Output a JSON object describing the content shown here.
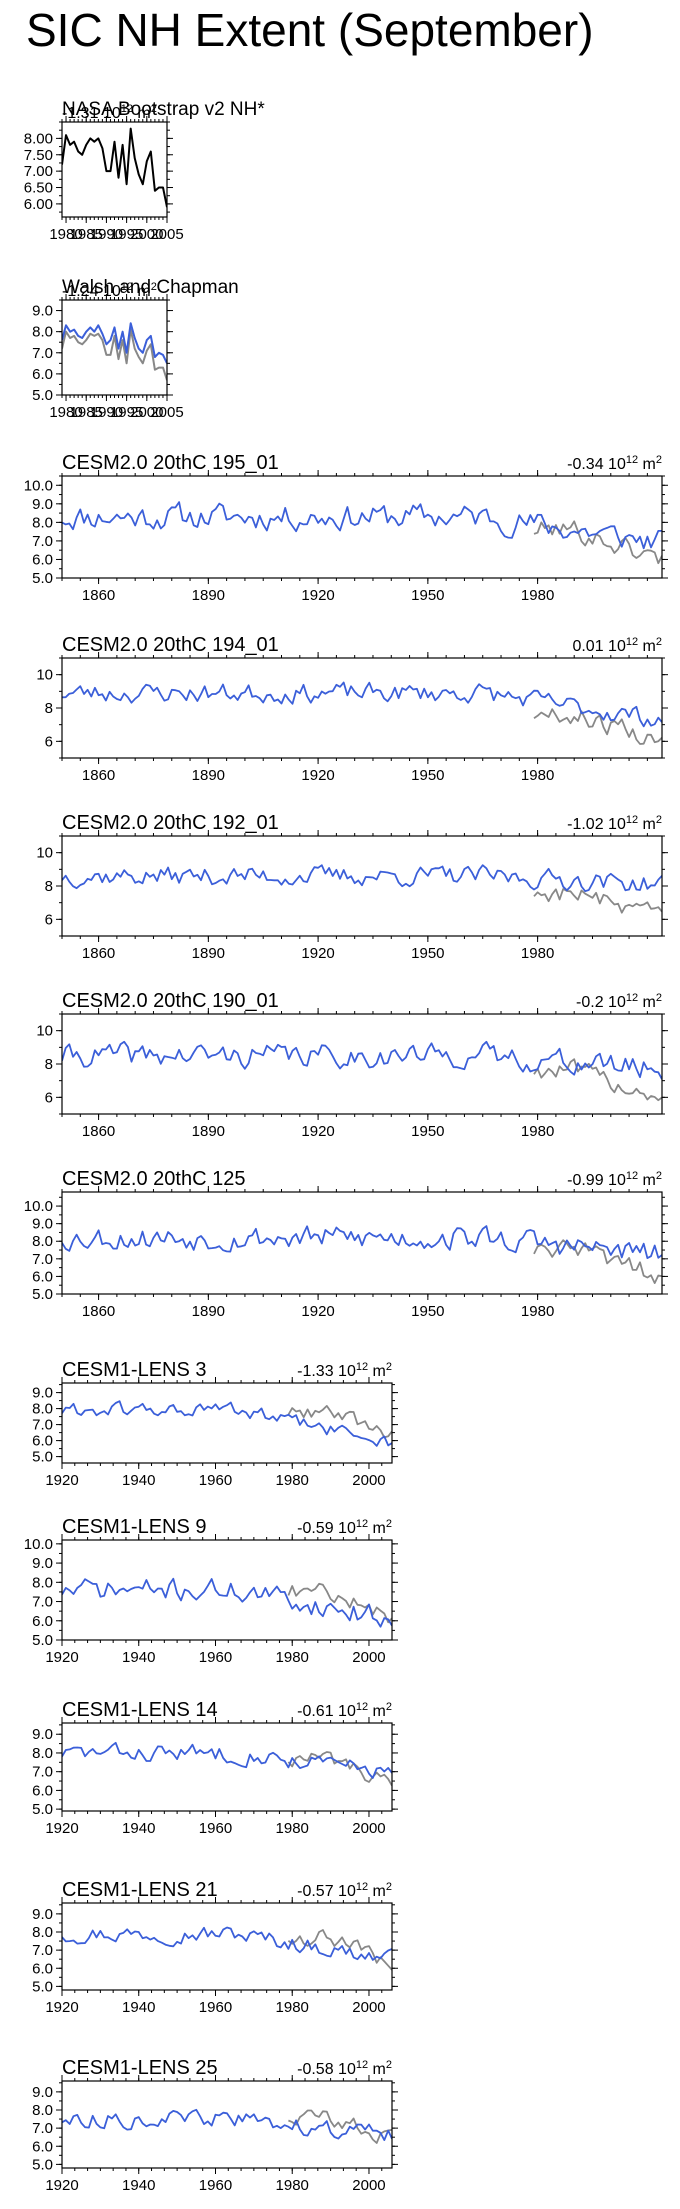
{
  "page_title": "SIC NH Extent (September)",
  "colors": {
    "model": "#3b5fd9",
    "obs": "#888888",
    "obs_primary": "#000000"
  },
  "chart_data": [
    {
      "type": "line",
      "id": "nasa",
      "title": "NASA Bootstrap v2 NH*",
      "subtitle": "-1.31 10",
      "subtitle_exp": "12",
      "subtitle_unit": "m",
      "subtitle_unit_exp": "2",
      "xlim": [
        1979,
        2005
      ],
      "ylim": [
        5.6,
        8.5
      ],
      "xticks": [
        1980,
        1985,
        1990,
        1995,
        2000,
        2005
      ],
      "xticklabels": [
        "1980",
        "1985",
        "1990",
        "1995",
        "2000",
        "2005"
      ],
      "yticks": [
        6.0,
        6.5,
        7.0,
        7.5,
        8.0
      ],
      "yticklabels": [
        "6.00",
        "6.50",
        "7.00",
        "7.50",
        "8.00"
      ],
      "series": [
        {
          "name": "NASA Bootstrap",
          "color": "#000000",
          "x0": 1979,
          "values": [
            7.2,
            8.1,
            7.8,
            7.9,
            7.6,
            7.5,
            7.8,
            8.0,
            7.9,
            8.0,
            7.7,
            7.0,
            7.0,
            7.9,
            6.8,
            7.8,
            6.6,
            8.3,
            7.4,
            6.9,
            6.6,
            7.3,
            7.6,
            6.4,
            6.5,
            6.5,
            5.9
          ]
        }
      ]
    },
    {
      "type": "line",
      "id": "walsh",
      "title": "Walsh and Chapman",
      "subtitle": "-1.24 10",
      "subtitle_exp": "12",
      "subtitle_unit": "m",
      "subtitle_unit_exp": "2",
      "xlim": [
        1979,
        2005
      ],
      "ylim": [
        5.0,
        9.5
      ],
      "xticks": [
        1980,
        1985,
        1990,
        1995,
        2000,
        2005
      ],
      "xticklabels": [
        "1980",
        "1985",
        "1990",
        "1995",
        "2000",
        "2005"
      ],
      "yticks": [
        5.0,
        6.0,
        7.0,
        8.0,
        9.0
      ],
      "yticklabels": [
        "5.0",
        "6.0",
        "7.0",
        "8.0",
        "9.0"
      ],
      "series": [
        {
          "name": "Walsh and Chapman",
          "color": "#3b5fd9",
          "x0": 1979,
          "values": [
            7.6,
            8.3,
            8.0,
            8.1,
            7.8,
            7.7,
            8.0,
            8.2,
            8.0,
            8.3,
            7.9,
            7.4,
            7.6,
            8.2,
            7.2,
            8.0,
            7.0,
            8.4,
            7.7,
            7.2,
            7.0,
            7.6,
            7.8,
            6.8,
            7.0,
            6.9,
            6.5
          ]
        },
        {
          "name": "NASA Bootstrap",
          "color": "#888888",
          "x0": 1979,
          "values": [
            7.2,
            8.0,
            7.7,
            7.8,
            7.5,
            7.4,
            7.6,
            7.9,
            7.8,
            7.9,
            7.6,
            6.9,
            6.9,
            7.8,
            6.7,
            7.6,
            6.5,
            8.1,
            7.2,
            6.8,
            6.5,
            7.1,
            7.4,
            6.2,
            6.3,
            6.3,
            5.7
          ]
        }
      ]
    },
    {
      "type": "line",
      "id": "cesm2_195_01",
      "title": "CESM2.0 20thC 195_01",
      "subtitle": "-0.34 10",
      "subtitle_exp": "12",
      "subtitle_unit": "m",
      "subtitle_unit_exp": "2",
      "xlim": [
        1850,
        2014
      ],
      "ylim": [
        5.0,
        10.5
      ],
      "xticks": [
        1860,
        1890,
        1920,
        1950,
        1980
      ],
      "xticklabels": [
        "1860",
        "1890",
        "1920",
        "1950",
        "1980"
      ],
      "yticks": [
        5.0,
        6.0,
        7.0,
        8.0,
        9.0,
        10.0
      ],
      "yticklabels": [
        "5.0",
        "6.0",
        "7.0",
        "8.0",
        "9.0",
        "10.0"
      ],
      "model_gen": {
        "seed": 11,
        "mean": 8.3,
        "amp": 0.6,
        "trend_end": -1.4,
        "color": "#3b5fd9"
      },
      "obs_gen": {
        "seed": 101,
        "start": 1979,
        "mean": 7.6,
        "amp": 0.5,
        "trend_end": -1.6,
        "color": "#888888"
      }
    },
    {
      "type": "line",
      "id": "cesm2_194_01",
      "title": "CESM2.0 20thC 194_01",
      "subtitle": "0.01 10",
      "subtitle_exp": "12",
      "subtitle_unit": "m",
      "subtitle_unit_exp": "2",
      "xlim": [
        1850,
        2014
      ],
      "ylim": [
        5.0,
        11.0
      ],
      "xticks": [
        1860,
        1890,
        1920,
        1950,
        1980
      ],
      "xticklabels": [
        "1860",
        "1890",
        "1920",
        "1950",
        "1980"
      ],
      "yticks": [
        6,
        8,
        10
      ],
      "yticklabels": [
        "6",
        "8",
        "10"
      ],
      "model_gen": {
        "seed": 23,
        "mean": 8.9,
        "amp": 0.5,
        "trend_end": -1.6,
        "color": "#3b5fd9"
      },
      "obs_gen": {
        "seed": 102,
        "start": 1979,
        "mean": 7.6,
        "amp": 0.5,
        "trend_end": -1.6,
        "color": "#888888"
      }
    },
    {
      "type": "line",
      "id": "cesm2_192_01",
      "title": "CESM2.0 20thC 192_01",
      "subtitle": "-1.02 10",
      "subtitle_exp": "12",
      "subtitle_unit": "m",
      "subtitle_unit_exp": "2",
      "xlim": [
        1850,
        2014
      ],
      "ylim": [
        5.0,
        11.0
      ],
      "xticks": [
        1860,
        1890,
        1920,
        1950,
        1980
      ],
      "xticklabels": [
        "1860",
        "1890",
        "1920",
        "1950",
        "1980"
      ],
      "yticks": [
        6,
        8,
        10
      ],
      "yticklabels": [
        "6",
        "8",
        "10"
      ],
      "model_gen": {
        "seed": 37,
        "mean": 8.6,
        "amp": 0.5,
        "trend_end": -0.5,
        "color": "#3b5fd9"
      },
      "obs_gen": {
        "seed": 103,
        "start": 1979,
        "mean": 7.6,
        "amp": 0.5,
        "trend_end": -1.6,
        "color": "#888888"
      }
    },
    {
      "type": "line",
      "id": "cesm2_190_01",
      "title": "CESM2.0 20thC 190_01",
      "subtitle": "-0.2 10",
      "subtitle_exp": "12",
      "subtitle_unit": "m",
      "subtitle_unit_exp": "2",
      "xlim": [
        1850,
        2014
      ],
      "ylim": [
        5.0,
        11.0
      ],
      "xticks": [
        1860,
        1890,
        1920,
        1950,
        1980
      ],
      "xticklabels": [
        "1860",
        "1890",
        "1920",
        "1950",
        "1980"
      ],
      "yticks": [
        6,
        8,
        10
      ],
      "yticklabels": [
        "6",
        "8",
        "10"
      ],
      "model_gen": {
        "seed": 41,
        "mean": 8.5,
        "amp": 0.6,
        "trend_end": -0.8,
        "color": "#3b5fd9"
      },
      "obs_gen": {
        "seed": 104,
        "start": 1979,
        "mean": 7.6,
        "amp": 0.5,
        "trend_end": -1.6,
        "color": "#888888"
      }
    },
    {
      "type": "line",
      "id": "cesm2_125",
      "title": "CESM2.0 20thC 125",
      "subtitle": "-0.99 10",
      "subtitle_exp": "12",
      "subtitle_unit": "m",
      "subtitle_unit_exp": "2",
      "xlim": [
        1850,
        2014
      ],
      "ylim": [
        5.0,
        10.8
      ],
      "xticks": [
        1860,
        1890,
        1920,
        1950,
        1980
      ],
      "xticklabels": [
        "1860",
        "1890",
        "1920",
        "1950",
        "1980"
      ],
      "yticks": [
        5.0,
        6.0,
        7.0,
        8.0,
        9.0,
        10.0
      ],
      "yticklabels": [
        "5.0",
        "6.0",
        "7.0",
        "8.0",
        "9.0",
        "10.0"
      ],
      "model_gen": {
        "seed": 53,
        "mean": 8.2,
        "amp": 0.6,
        "trend_end": -1.0,
        "color": "#3b5fd9"
      },
      "obs_gen": {
        "seed": 105,
        "start": 1979,
        "mean": 7.5,
        "amp": 0.5,
        "trend_end": -1.5,
        "color": "#888888"
      }
    },
    {
      "type": "line",
      "id": "lens_3",
      "title": "CESM1-LENS 3",
      "subtitle": "-1.33 10",
      "subtitle_exp": "12",
      "subtitle_unit": "m",
      "subtitle_unit_exp": "2",
      "xlim": [
        1920,
        2006
      ],
      "ylim": [
        4.6,
        9.6
      ],
      "xticks": [
        1920,
        1940,
        1960,
        1980,
        2000
      ],
      "xticklabels": [
        "1920",
        "1940",
        "1960",
        "1980",
        "2000"
      ],
      "yticks": [
        5.0,
        6.0,
        7.0,
        8.0,
        9.0
      ],
      "yticklabels": [
        "5.0",
        "6.0",
        "7.0",
        "8.0",
        "9.0"
      ],
      "model_gen": {
        "seed": 61,
        "mean": 7.9,
        "amp": 0.4,
        "trend_end": -2.0,
        "color": "#3b5fd9"
      },
      "obs_gen": {
        "seed": 106,
        "start": 1979,
        "mean": 7.8,
        "amp": 0.4,
        "trend_end": -1.5,
        "color": "#888888"
      }
    },
    {
      "type": "line",
      "id": "lens_9",
      "title": "CESM1-LENS 9",
      "subtitle": "-0.59 10",
      "subtitle_exp": "12",
      "subtitle_unit": "m",
      "subtitle_unit_exp": "2",
      "xlim": [
        1920,
        2006
      ],
      "ylim": [
        5.0,
        10.2
      ],
      "xticks": [
        1920,
        1940,
        1960,
        1980,
        2000
      ],
      "xticklabels": [
        "1920",
        "1940",
        "1960",
        "1980",
        "2000"
      ],
      "yticks": [
        5.0,
        6.0,
        7.0,
        8.0,
        9.0,
        10.0
      ],
      "yticklabels": [
        "5.0",
        "6.0",
        "7.0",
        "8.0",
        "9.0",
        "10.0"
      ],
      "model_gen": {
        "seed": 71,
        "mean": 7.6,
        "amp": 0.5,
        "trend_end": -1.5,
        "color": "#3b5fd9"
      },
      "obs_gen": {
        "seed": 107,
        "start": 1979,
        "mean": 7.5,
        "amp": 0.4,
        "trend_end": -1.4,
        "color": "#888888"
      }
    },
    {
      "type": "line",
      "id": "lens_14",
      "title": "CESM1-LENS 14",
      "subtitle": "-0.61 10",
      "subtitle_exp": "12",
      "subtitle_unit": "m",
      "subtitle_unit_exp": "2",
      "xlim": [
        1920,
        2006
      ],
      "ylim": [
        4.9,
        9.6
      ],
      "xticks": [
        1920,
        1940,
        1960,
        1980,
        2000
      ],
      "xticklabels": [
        "1920",
        "1940",
        "1960",
        "1980",
        "2000"
      ],
      "yticks": [
        5.0,
        6.0,
        7.0,
        8.0,
        9.0
      ],
      "yticklabels": [
        "5.0",
        "6.0",
        "7.0",
        "8.0",
        "9.0"
      ],
      "model_gen": {
        "seed": 83,
        "mean": 8.0,
        "amp": 0.4,
        "trend_end": -1.0,
        "color": "#3b5fd9"
      },
      "obs_gen": {
        "seed": 108,
        "start": 1979,
        "mean": 7.7,
        "amp": 0.4,
        "trend_end": -1.6,
        "color": "#888888"
      }
    },
    {
      "type": "line",
      "id": "lens_21",
      "title": "CESM1-LENS 21",
      "subtitle": "-0.57 10",
      "subtitle_exp": "12",
      "subtitle_unit": "m",
      "subtitle_unit_exp": "2",
      "xlim": [
        1920,
        2006
      ],
      "ylim": [
        4.8,
        9.6
      ],
      "xticks": [
        1920,
        1940,
        1960,
        1980,
        2000
      ],
      "xticklabels": [
        "1920",
        "1940",
        "1960",
        "1980",
        "2000"
      ],
      "yticks": [
        5.0,
        6.0,
        7.0,
        8.0,
        9.0
      ],
      "yticklabels": [
        "5.0",
        "6.0",
        "7.0",
        "8.0",
        "9.0"
      ],
      "model_gen": {
        "seed": 97,
        "mean": 7.9,
        "amp": 0.4,
        "trend_end": -1.4,
        "color": "#3b5fd9"
      },
      "obs_gen": {
        "seed": 109,
        "start": 1979,
        "mean": 7.7,
        "amp": 0.4,
        "trend_end": -1.5,
        "color": "#888888"
      }
    },
    {
      "type": "line",
      "id": "lens_25",
      "title": "CESM1-LENS 25",
      "subtitle": "-0.58 10",
      "subtitle_exp": "12",
      "subtitle_unit": "m",
      "subtitle_unit_exp": "2",
      "xlim": [
        1920,
        2006
      ],
      "ylim": [
        4.8,
        9.6
      ],
      "xticks": [
        1920,
        1940,
        1960,
        1980,
        2000
      ],
      "xticklabels": [
        "1920",
        "1940",
        "1960",
        "1980",
        "2000"
      ],
      "yticks": [
        5.0,
        6.0,
        7.0,
        8.0,
        9.0
      ],
      "yticklabels": [
        "5.0",
        "6.0",
        "7.0",
        "8.0",
        "9.0"
      ],
      "model_gen": {
        "seed": 113,
        "mean": 7.5,
        "amp": 0.4,
        "trend_end": -0.9,
        "color": "#3b5fd9"
      },
      "obs_gen": {
        "seed": 110,
        "start": 1979,
        "mean": 7.6,
        "amp": 0.4,
        "trend_end": -1.3,
        "color": "#888888"
      }
    }
  ]
}
